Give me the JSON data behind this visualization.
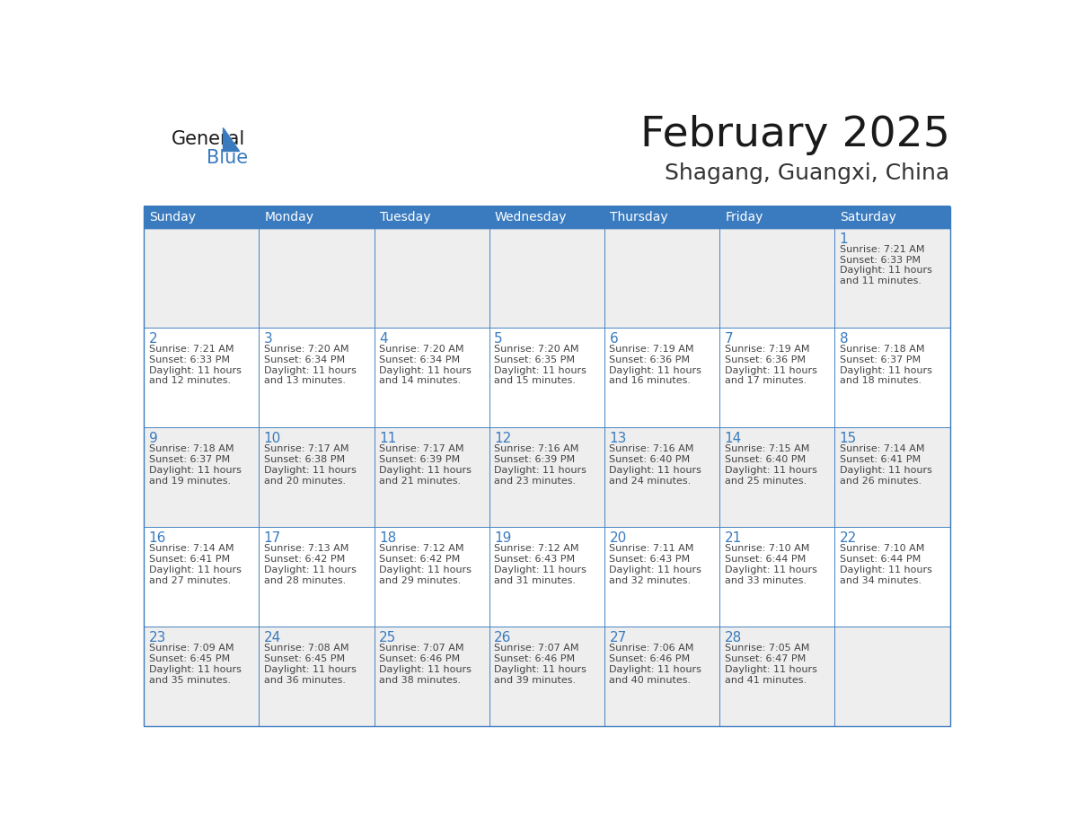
{
  "title": "February 2025",
  "subtitle": "Shagang, Guangxi, China",
  "header_bg_color": "#3a7bbf",
  "header_text_color": "#ffffff",
  "row0_bg": "#eeeeee",
  "row1_bg": "#ffffff",
  "row2_bg": "#eeeeee",
  "row3_bg": "#ffffff",
  "row4_bg": "#eeeeee",
  "border_color": "#3a7bbf",
  "day_number_color": "#3a7bbf",
  "text_color": "#444444",
  "days_of_week": [
    "Sunday",
    "Monday",
    "Tuesday",
    "Wednesday",
    "Thursday",
    "Friday",
    "Saturday"
  ],
  "title_color": "#1a1a1a",
  "subtitle_color": "#333333",
  "logo_general_color": "#1a1a1a",
  "logo_blue_color": "#3a7bbf",
  "calendar_data": [
    [
      null,
      null,
      null,
      null,
      null,
      null,
      {
        "day": "1",
        "sunrise": "7:21 AM",
        "sunset": "6:33 PM",
        "daylight_line1": "Daylight: 11 hours",
        "daylight_line2": "and 11 minutes."
      }
    ],
    [
      {
        "day": "2",
        "sunrise": "7:21 AM",
        "sunset": "6:33 PM",
        "daylight_line1": "Daylight: 11 hours",
        "daylight_line2": "and 12 minutes."
      },
      {
        "day": "3",
        "sunrise": "7:20 AM",
        "sunset": "6:34 PM",
        "daylight_line1": "Daylight: 11 hours",
        "daylight_line2": "and 13 minutes."
      },
      {
        "day": "4",
        "sunrise": "7:20 AM",
        "sunset": "6:34 PM",
        "daylight_line1": "Daylight: 11 hours",
        "daylight_line2": "and 14 minutes."
      },
      {
        "day": "5",
        "sunrise": "7:20 AM",
        "sunset": "6:35 PM",
        "daylight_line1": "Daylight: 11 hours",
        "daylight_line2": "and 15 minutes."
      },
      {
        "day": "6",
        "sunrise": "7:19 AM",
        "sunset": "6:36 PM",
        "daylight_line1": "Daylight: 11 hours",
        "daylight_line2": "and 16 minutes."
      },
      {
        "day": "7",
        "sunrise": "7:19 AM",
        "sunset": "6:36 PM",
        "daylight_line1": "Daylight: 11 hours",
        "daylight_line2": "and 17 minutes."
      },
      {
        "day": "8",
        "sunrise": "7:18 AM",
        "sunset": "6:37 PM",
        "daylight_line1": "Daylight: 11 hours",
        "daylight_line2": "and 18 minutes."
      }
    ],
    [
      {
        "day": "9",
        "sunrise": "7:18 AM",
        "sunset": "6:37 PM",
        "daylight_line1": "Daylight: 11 hours",
        "daylight_line2": "and 19 minutes."
      },
      {
        "day": "10",
        "sunrise": "7:17 AM",
        "sunset": "6:38 PM",
        "daylight_line1": "Daylight: 11 hours",
        "daylight_line2": "and 20 minutes."
      },
      {
        "day": "11",
        "sunrise": "7:17 AM",
        "sunset": "6:39 PM",
        "daylight_line1": "Daylight: 11 hours",
        "daylight_line2": "and 21 minutes."
      },
      {
        "day": "12",
        "sunrise": "7:16 AM",
        "sunset": "6:39 PM",
        "daylight_line1": "Daylight: 11 hours",
        "daylight_line2": "and 23 minutes."
      },
      {
        "day": "13",
        "sunrise": "7:16 AM",
        "sunset": "6:40 PM",
        "daylight_line1": "Daylight: 11 hours",
        "daylight_line2": "and 24 minutes."
      },
      {
        "day": "14",
        "sunrise": "7:15 AM",
        "sunset": "6:40 PM",
        "daylight_line1": "Daylight: 11 hours",
        "daylight_line2": "and 25 minutes."
      },
      {
        "day": "15",
        "sunrise": "7:14 AM",
        "sunset": "6:41 PM",
        "daylight_line1": "Daylight: 11 hours",
        "daylight_line2": "and 26 minutes."
      }
    ],
    [
      {
        "day": "16",
        "sunrise": "7:14 AM",
        "sunset": "6:41 PM",
        "daylight_line1": "Daylight: 11 hours",
        "daylight_line2": "and 27 minutes."
      },
      {
        "day": "17",
        "sunrise": "7:13 AM",
        "sunset": "6:42 PM",
        "daylight_line1": "Daylight: 11 hours",
        "daylight_line2": "and 28 minutes."
      },
      {
        "day": "18",
        "sunrise": "7:12 AM",
        "sunset": "6:42 PM",
        "daylight_line1": "Daylight: 11 hours",
        "daylight_line2": "and 29 minutes."
      },
      {
        "day": "19",
        "sunrise": "7:12 AM",
        "sunset": "6:43 PM",
        "daylight_line1": "Daylight: 11 hours",
        "daylight_line2": "and 31 minutes."
      },
      {
        "day": "20",
        "sunrise": "7:11 AM",
        "sunset": "6:43 PM",
        "daylight_line1": "Daylight: 11 hours",
        "daylight_line2": "and 32 minutes."
      },
      {
        "day": "21",
        "sunrise": "7:10 AM",
        "sunset": "6:44 PM",
        "daylight_line1": "Daylight: 11 hours",
        "daylight_line2": "and 33 minutes."
      },
      {
        "day": "22",
        "sunrise": "7:10 AM",
        "sunset": "6:44 PM",
        "daylight_line1": "Daylight: 11 hours",
        "daylight_line2": "and 34 minutes."
      }
    ],
    [
      {
        "day": "23",
        "sunrise": "7:09 AM",
        "sunset": "6:45 PM",
        "daylight_line1": "Daylight: 11 hours",
        "daylight_line2": "and 35 minutes."
      },
      {
        "day": "24",
        "sunrise": "7:08 AM",
        "sunset": "6:45 PM",
        "daylight_line1": "Daylight: 11 hours",
        "daylight_line2": "and 36 minutes."
      },
      {
        "day": "25",
        "sunrise": "7:07 AM",
        "sunset": "6:46 PM",
        "daylight_line1": "Daylight: 11 hours",
        "daylight_line2": "and 38 minutes."
      },
      {
        "day": "26",
        "sunrise": "7:07 AM",
        "sunset": "6:46 PM",
        "daylight_line1": "Daylight: 11 hours",
        "daylight_line2": "and 39 minutes."
      },
      {
        "day": "27",
        "sunrise": "7:06 AM",
        "sunset": "6:46 PM",
        "daylight_line1": "Daylight: 11 hours",
        "daylight_line2": "and 40 minutes."
      },
      {
        "day": "28",
        "sunrise": "7:05 AM",
        "sunset": "6:47 PM",
        "daylight_line1": "Daylight: 11 hours",
        "daylight_line2": "and 41 minutes."
      },
      null
    ]
  ]
}
